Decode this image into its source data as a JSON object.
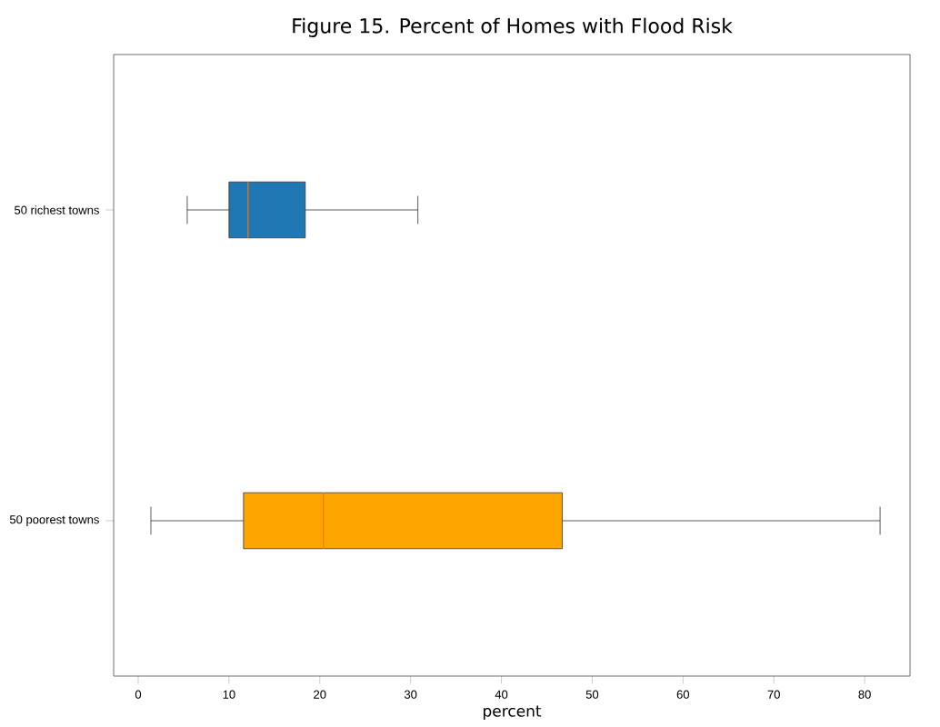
{
  "chart_data": {
    "type": "box",
    "title": "Figure 15. Percent of Homes with Flood Risk",
    "xlabel": "percent",
    "orientation": "horizontal",
    "categories": [
      "50 richest towns",
      "50 poorest towns"
    ],
    "colors": [
      "#1f77b4",
      "#ffa500"
    ],
    "boxes": [
      {
        "low": 5.4,
        "q1": 10.0,
        "median": 12.1,
        "q3": 18.4,
        "high": 30.8
      },
      {
        "low": 1.4,
        "q1": 11.6,
        "median": 20.4,
        "q3": 46.7,
        "high": 81.7
      }
    ],
    "xlim": [
      -2.7,
      85
    ],
    "xticks": [
      0,
      10,
      20,
      30,
      40,
      50,
      60,
      70,
      80
    ]
  }
}
